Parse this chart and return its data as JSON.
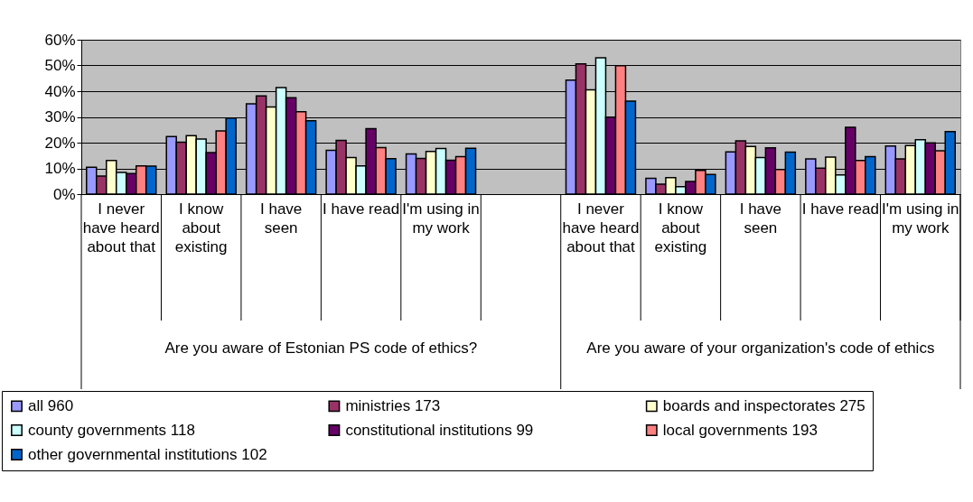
{
  "chart_data": {
    "type": "bar",
    "categories": [
      "I never have heard about that",
      "I know about existing",
      "I have seen",
      "I have read",
      "I'm using in my work",
      null,
      "I never have heard about that",
      "I know about existing",
      "I have seen",
      "I have read",
      "I'm using in my work"
    ],
    "series": [
      {
        "name": "all 960",
        "color": "#9999ff",
        "values": [
          10.4,
          22.4,
          35.1,
          17.0,
          15.6,
          null,
          44.3,
          6.1,
          16.4,
          13.7,
          18.7
        ]
      },
      {
        "name": "ministries 173",
        "color": "#993366",
        "values": [
          7.0,
          20.2,
          38.2,
          20.9,
          13.9,
          null,
          50.6,
          3.9,
          20.7,
          10.1,
          13.7
        ]
      },
      {
        "name": "boards and inspectorates 275",
        "color": "#ffffcc",
        "values": [
          13.1,
          22.7,
          33.9,
          14.2,
          16.6,
          null,
          40.5,
          6.4,
          18.5,
          14.4,
          18.9
        ]
      },
      {
        "name": "county governments 118",
        "color": "#ccffff",
        "values": [
          8.4,
          21.4,
          41.4,
          11.0,
          17.7,
          null,
          53.0,
          2.9,
          14.2,
          7.5,
          21.1
        ]
      },
      {
        "name": "constitutional institutions 99",
        "color": "#660066",
        "values": [
          8.0,
          16.1,
          37.5,
          25.4,
          13.2,
          null,
          29.9,
          4.9,
          18.0,
          26.0,
          19.9
        ]
      },
      {
        "name": "local governments 193",
        "color": "#ff8080",
        "values": [
          11.0,
          24.6,
          32.0,
          18.1,
          14.6,
          null,
          49.9,
          9.2,
          9.6,
          13.1,
          16.8
        ]
      },
      {
        "name": "other governmental institutions 102",
        "color": "#0066cc",
        "values": [
          10.9,
          29.6,
          28.5,
          13.8,
          17.8,
          null,
          36.1,
          7.6,
          16.3,
          14.6,
          24.3
        ]
      }
    ],
    "annotations": [
      "Are you aware of Estonian PS code of ethics?",
      "Are you aware of your organization's code of ethics"
    ],
    "ylim": [
      0,
      60
    ],
    "yticks": [
      {
        "value": 0,
        "label": "0%"
      },
      {
        "value": 10,
        "label": "10%"
      },
      {
        "value": 20,
        "label": "20%"
      },
      {
        "value": 30,
        "label": "30%"
      },
      {
        "value": 40,
        "label": "40%"
      },
      {
        "value": 50,
        "label": "50%"
      },
      {
        "value": 60,
        "label": "60%"
      }
    ],
    "grid": "y",
    "legend": "bottom"
  }
}
